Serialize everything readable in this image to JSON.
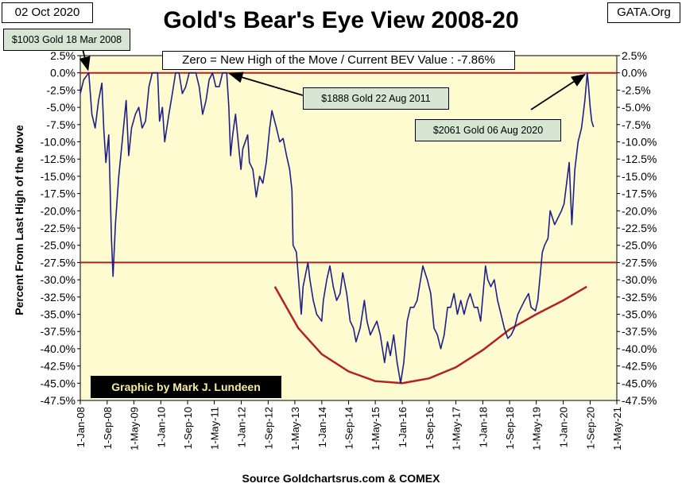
{
  "header": {
    "date": "02 Oct 2020",
    "source_tag": "GATA.Org"
  },
  "footer": {
    "credit": "Graphic by Mark J. Lundeen",
    "source": "Source Goldchartsrus.com & COMEX"
  },
  "colors": {
    "plot_bg": "#fdfbcf",
    "series": "#1f1f8a",
    "reference_line": "#b22222",
    "curve": "#b22222",
    "annotation_bg": "#d7e6d2"
  },
  "chart_data": {
    "type": "line",
    "title": "Gold's Bear's Eye View 2008-20",
    "ylabel": "Percent  From Last High of the Move",
    "xlabel": "",
    "ylim": [
      -47.5,
      2.5
    ],
    "xlim": [
      "2008-01-01",
      "2021-05-01"
    ],
    "grid": false,
    "yticks": [
      "2.5%",
      "0.0%",
      "-2.5%",
      "-5.0%",
      "-7.5%",
      "-10.0%",
      "-12.5%",
      "-15.0%",
      "-17.5%",
      "-20.0%",
      "-22.5%",
      "-25.0%",
      "-27.5%",
      "-30.0%",
      "-32.5%",
      "-35.0%",
      "-37.5%",
      "-40.0%",
      "-42.5%",
      "-45.0%",
      "-47.5%"
    ],
    "xticks": [
      "1-Jan-08",
      "1-Sep-08",
      "1-May-09",
      "1-Jan-10",
      "1-Sep-10",
      "1-May-11",
      "1-Jan-12",
      "1-Sep-12",
      "1-May-13",
      "1-Jan-14",
      "1-Sep-14",
      "1-May-15",
      "1-Jan-16",
      "1-Sep-16",
      "1-May-17",
      "1-Jan-18",
      "1-Sep-18",
      "1-May-19",
      "1-Jan-20",
      "1-Sep-20",
      "1-May-21"
    ],
    "reference_lines": [
      0,
      -27.5
    ],
    "series": [
      {
        "x": [
          "2008-01-01",
          "2008-02-01",
          "2008-03-18",
          "2008-04-15",
          "2008-05-15",
          "2008-06-15",
          "2008-07-15",
          "2008-08-01",
          "2008-08-20",
          "2008-09-15",
          "2008-10-10",
          "2008-10-24",
          "2008-11-15",
          "2008-12-15",
          "2009-01-15",
          "2009-02-20",
          "2009-03-15",
          "2009-04-10",
          "2009-05-15",
          "2009-06-15",
          "2009-07-15",
          "2009-08-15",
          "2009-09-15",
          "2009-10-15",
          "2009-11-15",
          "2009-12-03",
          "2009-12-20",
          "2010-01-15",
          "2010-02-05",
          "2010-03-15",
          "2010-04-15",
          "2010-05-15",
          "2010-06-15",
          "2010-07-15",
          "2010-08-15",
          "2010-09-15",
          "2010-10-15",
          "2010-11-15",
          "2010-12-15",
          "2011-01-15",
          "2011-02-15",
          "2011-03-15",
          "2011-04-15",
          "2011-05-15",
          "2011-06-15",
          "2011-07-15",
          "2011-08-22",
          "2011-09-10",
          "2011-09-26",
          "2011-10-15",
          "2011-11-10",
          "2011-12-29",
          "2012-01-15",
          "2012-02-28",
          "2012-03-15",
          "2012-04-15",
          "2012-05-16",
          "2012-06-15",
          "2012-07-15",
          "2012-08-15",
          "2012-09-15",
          "2012-10-05",
          "2012-11-15",
          "2012-12-15",
          "2013-01-15",
          "2013-02-15",
          "2013-03-15",
          "2013-04-05",
          "2013-04-15",
          "2013-05-15",
          "2013-06-28",
          "2013-07-15",
          "2013-08-28",
          "2013-09-15",
          "2013-10-15",
          "2013-11-15",
          "2013-12-31",
          "2014-01-15",
          "2014-02-15",
          "2014-03-15",
          "2014-04-15",
          "2014-05-15",
          "2014-06-15",
          "2014-07-10",
          "2014-08-15",
          "2014-09-15",
          "2014-10-15",
          "2014-11-07",
          "2014-12-15",
          "2015-01-22",
          "2015-02-15",
          "2015-03-17",
          "2015-04-15",
          "2015-05-15",
          "2015-06-15",
          "2015-07-24",
          "2015-08-20",
          "2015-09-15",
          "2015-10-15",
          "2015-11-15",
          "2015-12-17",
          "2016-01-15",
          "2016-02-15",
          "2016-03-15",
          "2016-04-15",
          "2016-05-15",
          "2016-06-15",
          "2016-07-06",
          "2016-08-15",
          "2016-09-15",
          "2016-10-15",
          "2016-11-15",
          "2016-12-15",
          "2017-01-15",
          "2017-02-15",
          "2017-03-15",
          "2017-04-15",
          "2017-05-15",
          "2017-06-15",
          "2017-07-15",
          "2017-08-15",
          "2017-09-08",
          "2017-10-15",
          "2017-11-15",
          "2017-12-12",
          "2018-01-25",
          "2018-02-15",
          "2018-03-15",
          "2018-04-15",
          "2018-05-15",
          "2018-06-15",
          "2018-07-15",
          "2018-08-16",
          "2018-09-15",
          "2018-10-15",
          "2018-11-15",
          "2018-12-15",
          "2019-01-15",
          "2019-02-20",
          "2019-03-15",
          "2019-04-23",
          "2019-05-15",
          "2019-06-25",
          "2019-07-15",
          "2019-08-15",
          "2019-09-04",
          "2019-10-15",
          "2019-11-15",
          "2019-12-15",
          "2020-01-08",
          "2020-02-24",
          "2020-03-19",
          "2020-04-15",
          "2020-05-15",
          "2020-06-15",
          "2020-07-15",
          "2020-08-06",
          "2020-08-15",
          "2020-09-01",
          "2020-09-15",
          "2020-10-02"
        ],
        "y": [
          -3.0,
          -1.0,
          0.0,
          -6.0,
          -8.0,
          -4.0,
          -1.5,
          -8.0,
          -13.0,
          -9.0,
          -24.0,
          -29.5,
          -22.0,
          -15.0,
          -10.0,
          -4.0,
          -12.0,
          -8.0,
          -6.0,
          -5.0,
          -8.0,
          -7.0,
          -2.0,
          0.0,
          0.0,
          0.0,
          -7.0,
          -5.0,
          -10.0,
          -6.0,
          -3.0,
          0.0,
          0.0,
          -3.0,
          -2.0,
          0.0,
          0.0,
          0.0,
          -2.0,
          -6.0,
          -4.0,
          -1.0,
          0.0,
          -2.0,
          -2.0,
          0.0,
          0.0,
          -5.0,
          -12.0,
          -9.0,
          -6.0,
          -14.0,
          -11.0,
          -9.0,
          -13.0,
          -14.0,
          -18.0,
          -15.0,
          -16.0,
          -13.0,
          -8.0,
          -5.5,
          -8.0,
          -10.0,
          -9.5,
          -12.0,
          -14.0,
          -17.0,
          -25.0,
          -26.0,
          -35.0,
          -31.0,
          -27.5,
          -30.0,
          -33.0,
          -35.0,
          -36.0,
          -33.0,
          -30.0,
          -28.0,
          -31.0,
          -33.0,
          -32.0,
          -29.0,
          -32.0,
          -36.0,
          -37.0,
          -39.0,
          -37.0,
          -33.0,
          -36.0,
          -38.0,
          -37.0,
          -36.0,
          -38.0,
          -42.0,
          -39.0,
          -41.0,
          -38.0,
          -42.0,
          -45.0,
          -42.0,
          -36.0,
          -34.0,
          -34.0,
          -33.0,
          -30.0,
          -28.0,
          -30.0,
          -32.0,
          -37.0,
          -38.0,
          -40.0,
          -38.0,
          -34.0,
          -34.0,
          -32.0,
          -35.0,
          -33.0,
          -35.0,
          -33.0,
          -32.0,
          -34.0,
          -34.0,
          -36.0,
          -28.0,
          -30.0,
          -31.0,
          -30.0,
          -33.0,
          -35.0,
          -37.0,
          -38.5,
          -38.0,
          -37.0,
          -35.0,
          -34.0,
          -33.0,
          -32.0,
          -34.0,
          -34.5,
          -33.0,
          -26.0,
          -25.0,
          -24.0,
          -20.0,
          -22.0,
          -21.0,
          -20.0,
          -19.0,
          -13.0,
          -22.0,
          -14.0,
          -10.0,
          -8.0,
          -4.0,
          0.0,
          -1.5,
          -5.0,
          -7.0,
          -7.86
        ]
      }
    ],
    "curve": {
      "x": [
        "2012-11-01",
        "2013-06-01",
        "2014-01-01",
        "2014-09-01",
        "2015-05-01",
        "2016-01-01",
        "2016-09-01",
        "2017-05-01",
        "2018-01-01",
        "2018-09-01",
        "2019-05-01",
        "2020-01-01",
        "2020-08-01"
      ],
      "y": [
        -31.0,
        -37.0,
        -40.8,
        -43.3,
        -44.7,
        -45.0,
        -44.3,
        -42.7,
        -40.2,
        -37.2,
        -35.0,
        -33.0,
        -31.0
      ]
    },
    "annotations": [
      {
        "label": "$1003  Gold 18 Mar 2008",
        "x": "2008-03-18",
        "y": 0.0
      },
      {
        "label": "$1888  Gold 22 Aug 2011",
        "x": "2011-08-22",
        "y": 0.0
      },
      {
        "label": "$2061  Gold 06 Aug 2020",
        "x": "2020-08-06",
        "y": 0.0
      }
    ],
    "zero_note": "Zero = New High of the Move / Current  BEV Value : -7.86%"
  }
}
